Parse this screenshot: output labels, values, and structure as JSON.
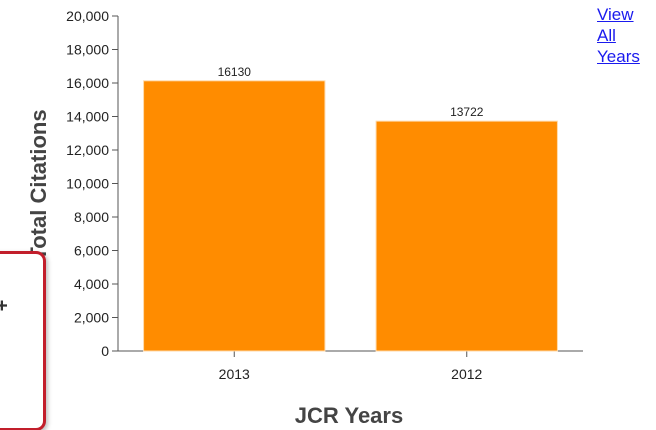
{
  "chart_data": {
    "type": "bar",
    "categories": [
      "2013",
      "2012"
    ],
    "values": [
      16130,
      13722
    ],
    "data_labels": [
      "16130",
      "13722"
    ],
    "title": "",
    "xlabel": "JCR Years",
    "ylabel": "Total Citations",
    "ylim": [
      0,
      20000
    ],
    "y_ticks": [
      0,
      2000,
      4000,
      6000,
      8000,
      10000,
      12000,
      14000,
      16000,
      18000,
      20000
    ],
    "y_tick_labels": [
      "0",
      "2,000",
      "4,000",
      "6,000",
      "8,000",
      "10,000",
      "12,000",
      "14,000",
      "16,000",
      "18,000",
      "20,000"
    ],
    "bar_color": "#ff8c00",
    "grid": false,
    "legend": "none"
  },
  "links": {
    "view_all_years": "View All Years"
  },
  "callout": {
    "glyph": "+"
  },
  "colors": {
    "link": "#1a1aee",
    "callout_border": "#c21e2b",
    "axis": "#555555"
  }
}
